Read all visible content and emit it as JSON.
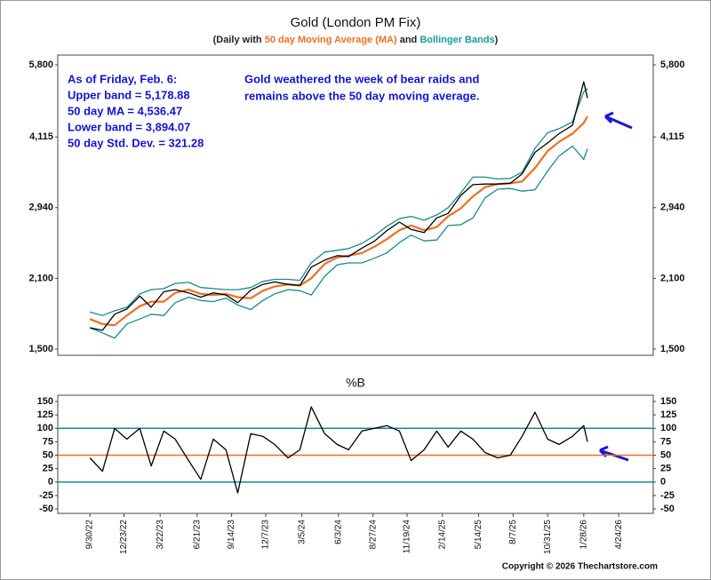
{
  "chart_data": [
    {
      "type": "line",
      "title": "Gold (London PM Fix)",
      "subtitle": [
        "(Daily with ",
        "50 day Moving Average (MA)",
        " and ",
        "Bollinger Bands",
        ")"
      ],
      "subtitle_colors": [
        "#222222",
        "#f07020",
        "#222222",
        "#1a9a9a",
        "#222222"
      ],
      "log_scale": true,
      "xlim": [
        "7/13/22",
        "7/18/26"
      ],
      "ylim": [
        1500,
        5800
      ],
      "yticks": [
        {
          "value": 1500,
          "label": "1,500"
        },
        {
          "value": 2100,
          "label": "2,100"
        },
        {
          "value": 2940,
          "label": "2,940"
        },
        {
          "value": 4115,
          "label": "4,115"
        },
        {
          "value": 5800,
          "label": "5,800"
        }
      ],
      "x": [
        "9/30/22",
        "10/31/22",
        "11/30/22",
        "12/30/22",
        "1/31/23",
        "2/28/23",
        "3/31/23",
        "4/28/23",
        "5/31/23",
        "6/30/23",
        "7/31/23",
        "8/31/23",
        "9/29/23",
        "10/31/23",
        "11/30/23",
        "12/29/23",
        "1/31/24",
        "2/29/24",
        "3/28/24",
        "4/30/24",
        "5/31/24",
        "6/28/24",
        "7/31/24",
        "8/30/24",
        "9/30/24",
        "10/31/24",
        "11/29/24",
        "12/31/24",
        "1/31/25",
        "2/28/25",
        "3/31/25",
        "4/30/25",
        "5/30/25",
        "6/30/25",
        "7/31/25",
        "8/29/25",
        "9/30/25",
        "10/31/25",
        "11/28/25",
        "12/31/25",
        "1/28/26",
        "2/6/26"
      ],
      "series": [
        {
          "color": "#1a8a8a",
          "values": [
            1790,
            1760,
            1800,
            1830,
            1950,
            1990,
            2000,
            2050,
            2060,
            2010,
            2000,
            1990,
            1990,
            2010,
            2070,
            2090,
            2090,
            2080,
            2260,
            2380,
            2400,
            2420,
            2480,
            2570,
            2690,
            2790,
            2820,
            2770,
            2840,
            2940,
            3150,
            3400,
            3400,
            3370,
            3380,
            3480,
            3900,
            4200,
            4280,
            4420,
            5100,
            5178.88
          ]
        },
        {
          "color": "#1a8a8a",
          "values": [
            1660,
            1620,
            1580,
            1690,
            1730,
            1770,
            1760,
            1870,
            1920,
            1890,
            1880,
            1910,
            1850,
            1810,
            1890,
            1950,
            1990,
            1980,
            1940,
            2120,
            2240,
            2260,
            2260,
            2310,
            2370,
            2490,
            2580,
            2510,
            2520,
            2700,
            2710,
            2800,
            3080,
            3210,
            3220,
            3180,
            3200,
            3500,
            3760,
            3940,
            3700,
            3894.07
          ]
        },
        {
          "color": "#f07020",
          "width": 2.2,
          "values": [
            1730,
            1690,
            1680,
            1760,
            1840,
            1880,
            1880,
            1960,
            1990,
            1950,
            1940,
            1950,
            1920,
            1910,
            1980,
            2020,
            2040,
            2030,
            2100,
            2250,
            2320,
            2340,
            2370,
            2440,
            2530,
            2640,
            2700,
            2640,
            2680,
            2820,
            2930,
            3100,
            3240,
            3290,
            3300,
            3330,
            3550,
            3850,
            4020,
            4180,
            4400,
            4536.47
          ]
        },
        {
          "color": "#000000",
          "values": [
            1660,
            1640,
            1770,
            1815,
            1930,
            1830,
            1970,
            1990,
            1960,
            1920,
            1960,
            1940,
            1870,
            1985,
            2040,
            2065,
            2040,
            2030,
            2215,
            2290,
            2340,
            2330,
            2425,
            2505,
            2635,
            2745,
            2650,
            2610,
            2800,
            2860,
            3115,
            3280,
            3290,
            3290,
            3300,
            3450,
            3825,
            4000,
            4180,
            4350,
            5350,
            4950
          ]
        }
      ],
      "annotations": {
        "stats": [
          "As of Friday, Feb. 6:",
          "Upper band = 5,178.88",
          "50 day MA = 4,536.47",
          "Lower band = 3,894.07",
          "50 day Std. Dev. = 321.28"
        ],
        "note": [
          "Gold weathered the week of bear raids and",
          "remains above the 50 day moving average."
        ]
      }
    },
    {
      "type": "line",
      "title": "%B",
      "xlim": [
        "7/13/22",
        "7/18/26"
      ],
      "ylim": [
        -50,
        150
      ],
      "yticks": [
        -50,
        -25,
        0,
        25,
        50,
        75,
        100,
        125,
        150
      ],
      "xticks": [
        "9/30/22",
        "12/23/22",
        "3/22/23",
        "6/21/23",
        "9/14/23",
        "12/7/23",
        "3/5/24",
        "6/3/24",
        "8/27/24",
        "11/19/24",
        "2/14/25",
        "5/14/25",
        "8/7/25",
        "10/31/25",
        "1/28/26",
        "4/24/26"
      ],
      "hlines": [
        {
          "value": 100,
          "color": "#1a8a8a"
        },
        {
          "value": 50,
          "color": "#f07020"
        },
        {
          "value": 0,
          "color": "#1a8a8a"
        }
      ],
      "x": [
        "9/30/22",
        "10/31/22",
        "11/30/22",
        "12/30/22",
        "1/31/23",
        "2/28/23",
        "3/31/23",
        "4/28/23",
        "5/31/23",
        "6/30/23",
        "7/31/23",
        "8/31/23",
        "9/29/23",
        "10/31/23",
        "11/30/23",
        "12/29/23",
        "1/31/24",
        "2/29/24",
        "3/28/24",
        "4/30/24",
        "5/31/24",
        "6/28/24",
        "7/31/24",
        "8/30/24",
        "9/30/24",
        "10/31/24",
        "11/29/24",
        "12/31/24",
        "1/31/25",
        "2/28/25",
        "3/31/25",
        "4/30/25",
        "5/30/25",
        "6/30/25",
        "7/31/25",
        "8/29/25",
        "9/30/25",
        "10/31/25",
        "11/28/25",
        "12/31/25",
        "1/28/26",
        "2/6/26"
      ],
      "series": [
        {
          "color": "#000000",
          "values": [
            45,
            20,
            100,
            80,
            100,
            30,
            95,
            80,
            40,
            5,
            80,
            60,
            -20,
            90,
            85,
            70,
            45,
            60,
            140,
            90,
            70,
            60,
            95,
            100,
            105,
            95,
            40,
            60,
            95,
            65,
            95,
            80,
            55,
            45,
            50,
            85,
            130,
            80,
            70,
            85,
            105,
            75
          ]
        }
      ],
      "copyright": "Copyright © 2026 Thechartstore.com"
    }
  ]
}
